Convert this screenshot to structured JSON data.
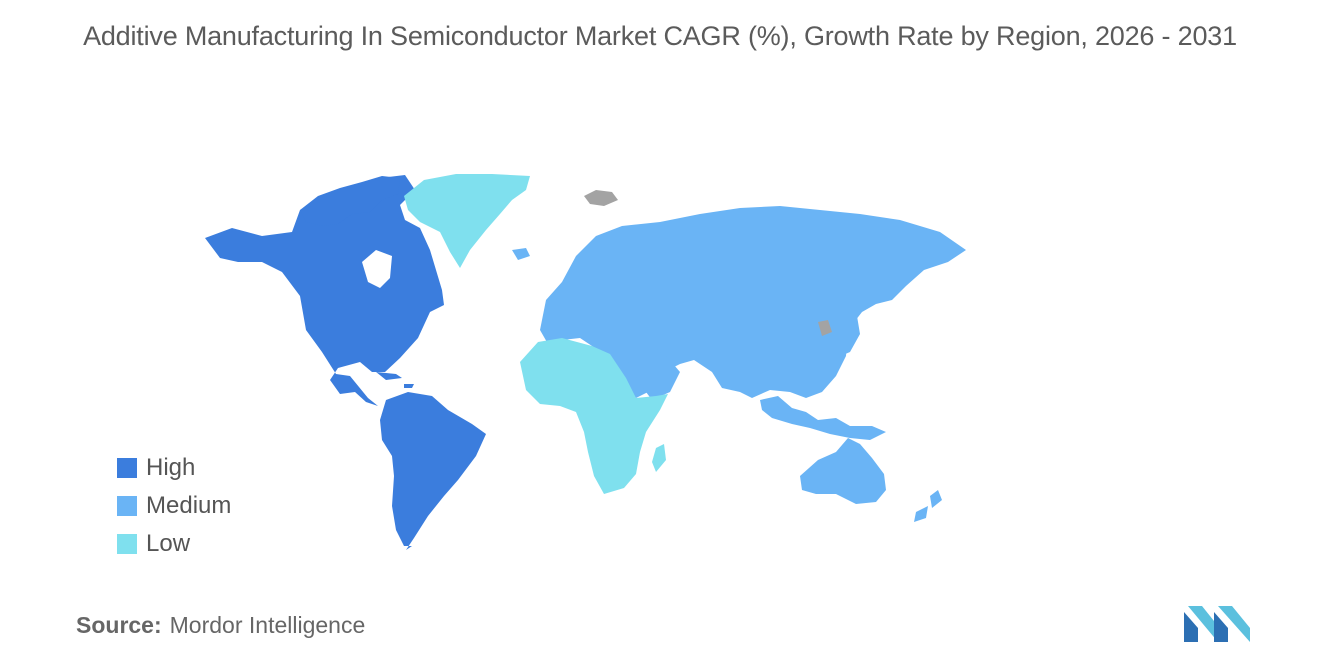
{
  "title": "Additive Manufacturing In Semiconductor Market CAGR (%), Growth Rate by Region, 2026 - 2031",
  "legend": [
    {
      "label": "High",
      "color": "#3b7ddd"
    },
    {
      "label": "Medium",
      "color": "#6ab4f5"
    },
    {
      "label": "Low",
      "color": "#7fe0ee"
    }
  ],
  "regions": {
    "north_america": "High",
    "south_america": "High",
    "europe": "Medium",
    "asia": "Medium",
    "oceania": "Medium",
    "middle_east": "Medium",
    "africa": "Low",
    "greenland": "Low"
  },
  "no_data_color": "#a3a3a3",
  "source": {
    "key": "Source:",
    "value": "Mordor Intelligence"
  },
  "logo": {
    "icon": "mordor-intelligence-logo"
  }
}
